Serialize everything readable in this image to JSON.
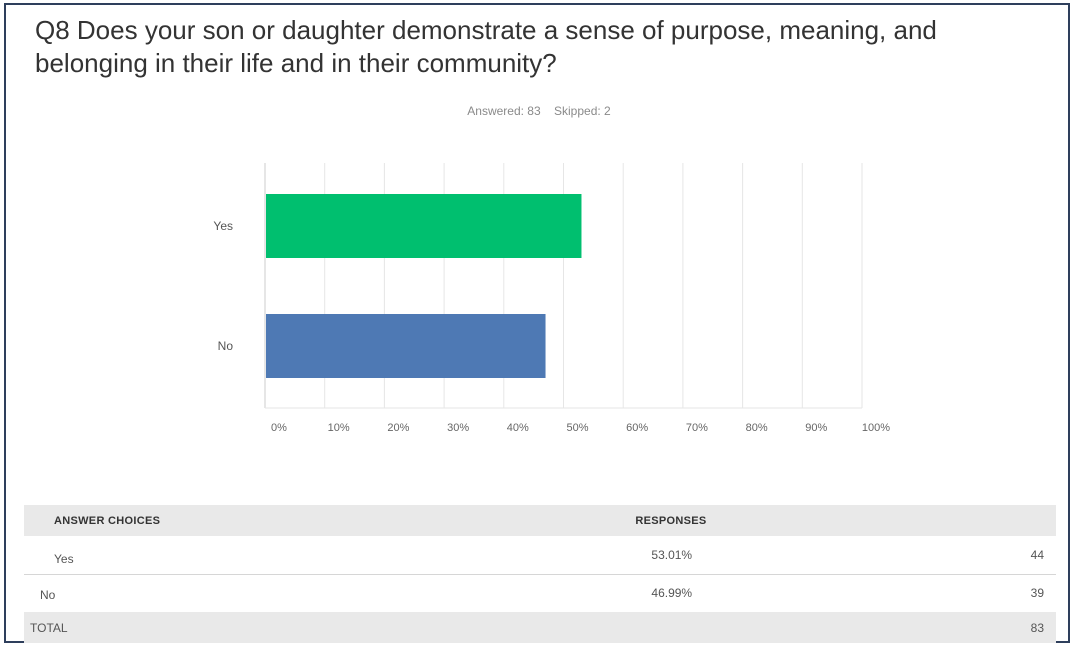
{
  "question": {
    "title": "Q8 Does your son or daughter demonstrate a sense of purpose, meaning, and belonging in their life and in their community?",
    "answered_label": "Answered: 83",
    "skipped_label": "Skipped: 2"
  },
  "chart_data": {
    "type": "bar",
    "orientation": "horizontal",
    "categories": [
      "Yes",
      "No"
    ],
    "values": [
      53.01,
      46.99
    ],
    "colors": [
      "#00bf6f",
      "#4e79b4"
    ],
    "xlim": [
      0,
      100
    ],
    "x_ticks": [
      "0%",
      "10%",
      "20%",
      "30%",
      "40%",
      "50%",
      "60%",
      "70%",
      "80%",
      "90%",
      "100%"
    ],
    "grid": true
  },
  "table": {
    "headers": {
      "choice": "ANSWER CHOICES",
      "responses": "RESPONSES"
    },
    "rows": [
      {
        "choice": "Yes",
        "percent": "53.01%",
        "count": "44"
      },
      {
        "choice": "No",
        "percent": "46.99%",
        "count": "39"
      }
    ],
    "total": {
      "label": "TOTAL",
      "count": "83"
    }
  }
}
